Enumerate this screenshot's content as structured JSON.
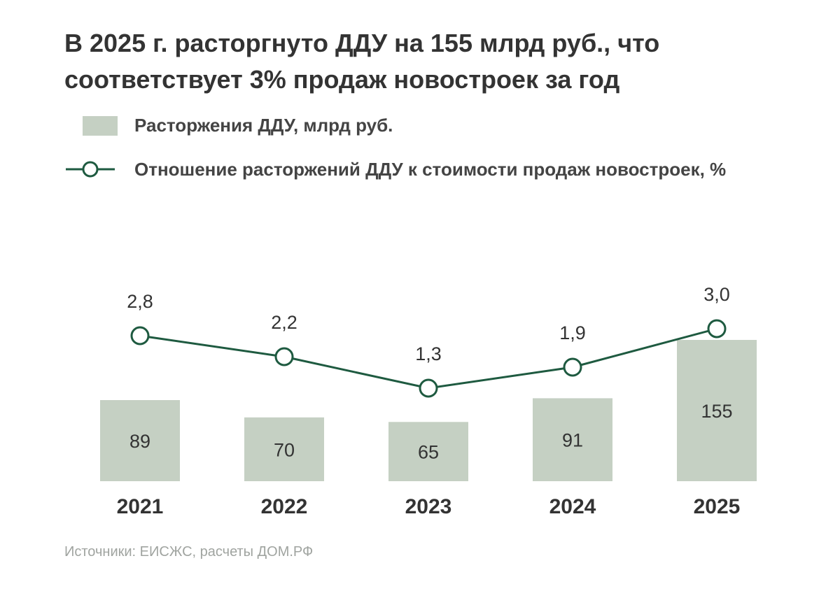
{
  "title": "В 2025 г. расторгнуто ДДУ на 155 млрд руб., что соответствует 3% продаж новостроек за год",
  "legend": {
    "bar_label": "Расторжения ДДУ, млрд руб.",
    "line_label": "Отношение расторжений ДДУ к стоимости продаж новостроек, %"
  },
  "source": "Источники: ЕИСЖС, расчеты ДОМ.РФ",
  "colors": {
    "bar": "#c5d0c3",
    "line": "#1e5a40",
    "text": "#333333"
  },
  "chart_data": {
    "type": "bar+line",
    "categories": [
      "2021",
      "2022",
      "2023",
      "2024",
      "2025"
    ],
    "series": [
      {
        "name": "Расторжения ДДУ, млрд руб.",
        "type": "bar",
        "values": [
          89,
          70,
          65,
          91,
          155
        ],
        "labels": [
          "89",
          "70",
          "65",
          "91",
          "155"
        ]
      },
      {
        "name": "Отношение расторжений ДДУ к стоимости продаж новостроек, %",
        "type": "line",
        "values": [
          2.8,
          2.2,
          1.3,
          1.9,
          3.0
        ],
        "labels": [
          "2,8",
          "2,2",
          "1,3",
          "1,9",
          "3,0"
        ]
      }
    ]
  }
}
